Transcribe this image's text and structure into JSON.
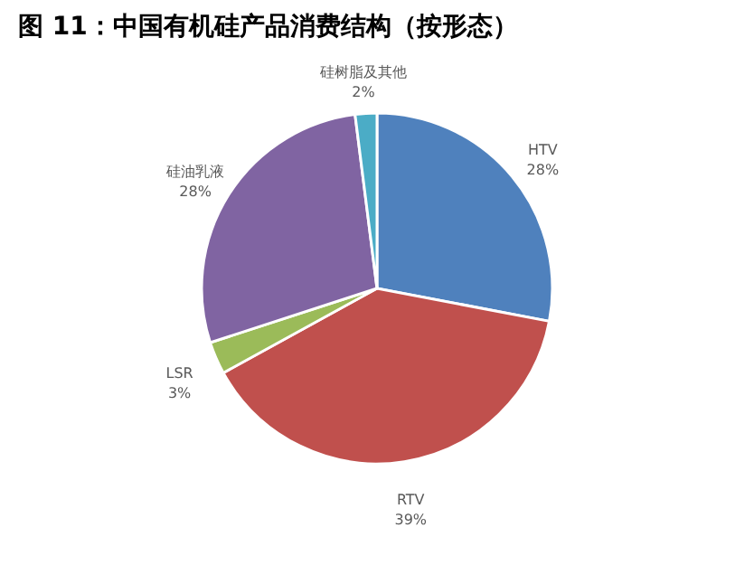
{
  "chart_data": {
    "type": "pie",
    "title": "图 11：中国有机硅产品消费结构（按形态）",
    "categories": [
      "HTV",
      "RTV",
      "LSR",
      "硅油乳液",
      "硅树脂及其他"
    ],
    "values": [
      28,
      39,
      3,
      28,
      2
    ],
    "value_labels": [
      "28%",
      "39%",
      "3%",
      "28%",
      "2%"
    ],
    "colors": [
      "#4f81bd",
      "#c0504d",
      "#9bbb59",
      "#8064a2",
      "#4bacc6"
    ]
  }
}
